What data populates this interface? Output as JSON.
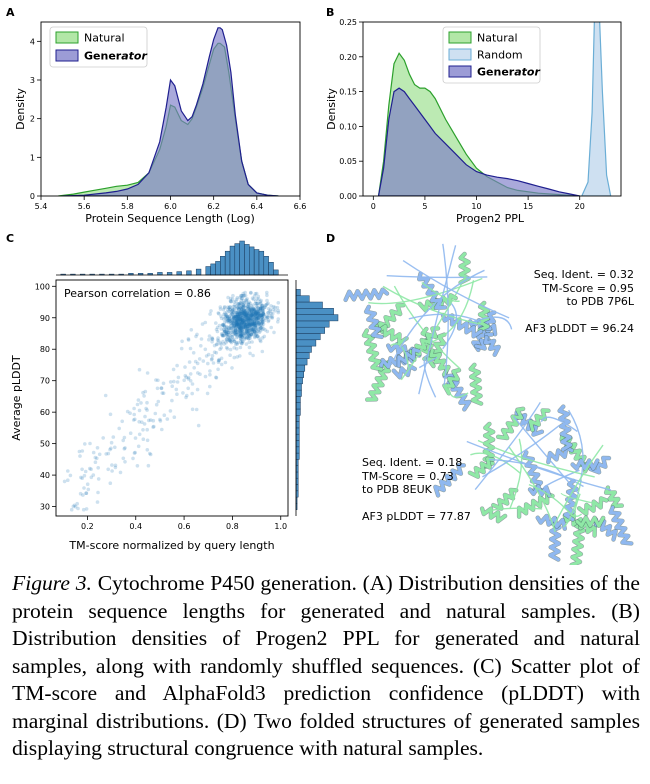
{
  "panels": {
    "A": {
      "letter": "A",
      "chart_data": {
        "type": "area",
        "xlabel": "Protein Sequence Length (Log)",
        "ylabel": "Density",
        "xlim": [
          5.4,
          6.6
        ],
        "ylim": [
          0,
          4.5
        ],
        "xticks": [
          "5.4",
          "5.6",
          "5.8",
          "6.0",
          "6.2",
          "6.4",
          "6.6"
        ],
        "yticks": [
          "0",
          "1",
          "2",
          "3",
          "4"
        ],
        "legend_position": "top-left",
        "legend": [
          {
            "label": "Natural",
            "bold": "",
            "italic": ""
          },
          {
            "label": "",
            "bold": "Gener",
            "italic": "ator"
          }
        ],
        "series": [
          {
            "key": "natural",
            "color": "#2ca02c",
            "fill": "#98df8a",
            "x": [
              5.48,
              5.55,
              5.6,
              5.65,
              5.7,
              5.75,
              5.8,
              5.85,
              5.9,
              5.95,
              5.98,
              6.0,
              6.02,
              6.05,
              6.08,
              6.1,
              6.12,
              6.15,
              6.18,
              6.2,
              6.22,
              6.23,
              6.25,
              6.27,
              6.3,
              6.33,
              6.36,
              6.4,
              6.45,
              6.5
            ],
            "y": [
              0,
              0.05,
              0.1,
              0.15,
              0.2,
              0.25,
              0.28,
              0.35,
              0.6,
              1.2,
              1.8,
              2.35,
              2.3,
              1.95,
              1.85,
              2.0,
              2.3,
              2.8,
              3.4,
              3.8,
              3.95,
              3.95,
              3.85,
              3.2,
              2.0,
              0.9,
              0.3,
              0.08,
              0.02,
              0
            ]
          },
          {
            "key": "generator",
            "color": "#1f1f8f",
            "fill": "#7b7bc8",
            "x": [
              5.5,
              5.6,
              5.7,
              5.75,
              5.8,
              5.85,
              5.9,
              5.95,
              5.98,
              6.0,
              6.02,
              6.05,
              6.08,
              6.1,
              6.12,
              6.15,
              6.18,
              6.2,
              6.22,
              6.23,
              6.24,
              6.26,
              6.28,
              6.3,
              6.33,
              6.36,
              6.4,
              6.45,
              6.5
            ],
            "y": [
              0,
              0.02,
              0.08,
              0.12,
              0.18,
              0.3,
              0.6,
              1.4,
              2.3,
              3.0,
              2.85,
              2.2,
              1.95,
              2.05,
              2.35,
              2.9,
              3.6,
              4.05,
              4.35,
              4.35,
              4.3,
              3.9,
              3.2,
              2.1,
              0.9,
              0.3,
              0.08,
              0.02,
              0
            ]
          }
        ]
      }
    },
    "B": {
      "letter": "B",
      "chart_data": {
        "type": "area",
        "xlabel": "Progen2 PPL",
        "ylabel": "Density",
        "xlim": [
          -1,
          24
        ],
        "ylim": [
          0,
          0.25
        ],
        "xticks": [
          "0",
          "5",
          "10",
          "15",
          "20"
        ],
        "xtick_values": [
          0,
          5,
          10,
          15,
          20
        ],
        "yticks": [
          "0.00",
          "0.05",
          "0.10",
          "0.15",
          "0.20",
          "0.25"
        ],
        "ytick_values": [
          0,
          0.05,
          0.1,
          0.15,
          0.2,
          0.25
        ],
        "legend_position": "top-center",
        "legend": [
          {
            "label": "Natural",
            "bold": "",
            "italic": ""
          },
          {
            "label": "Random",
            "bold": "",
            "italic": ""
          },
          {
            "label": "",
            "bold": "Gener",
            "italic": "ator"
          }
        ],
        "series": [
          {
            "key": "natural",
            "color": "#2ca02c",
            "fill": "#98df8a",
            "x": [
              0.5,
              1.0,
              1.5,
              2.0,
              2.5,
              3.0,
              3.5,
              4.0,
              4.5,
              5.0,
              5.5,
              6.0,
              7.0,
              8.0,
              9.0,
              10.0,
              11.0,
              12.0,
              13.0,
              14.0,
              16.0,
              18.0,
              20.0
            ],
            "y": [
              0,
              0.05,
              0.13,
              0.19,
              0.205,
              0.195,
              0.175,
              0.16,
              0.155,
              0.155,
              0.15,
              0.14,
              0.11,
              0.085,
              0.06,
              0.04,
              0.028,
              0.02,
              0.012,
              0.008,
              0.004,
              0.002,
              0
            ]
          },
          {
            "key": "random",
            "color": "#6baed6",
            "fill": "#c6dbef",
            "x": [
              20.2,
              20.8,
              21.2,
              21.5,
              21.8,
              22.2,
              22.6,
              23.0
            ],
            "y": [
              0,
              0.02,
              0.12,
              0.3,
              0.3,
              0.15,
              0.03,
              0
            ]
          },
          {
            "key": "generator",
            "color": "#1f1f8f",
            "fill": "#7b7bc8",
            "x": [
              0.5,
              1.0,
              1.5,
              2.0,
              2.5,
              3.0,
              3.5,
              4.0,
              4.5,
              5.0,
              5.5,
              6.0,
              7.0,
              8.0,
              9.0,
              10.0,
              11.0,
              12.0,
              13.0,
              14.0,
              15.0,
              16.0,
              17.0,
              18.0,
              19.0,
              20.0
            ],
            "y": [
              0,
              0.04,
              0.11,
              0.15,
              0.155,
              0.15,
              0.14,
              0.13,
              0.12,
              0.11,
              0.1,
              0.09,
              0.075,
              0.06,
              0.045,
              0.035,
              0.03,
              0.027,
              0.025,
              0.022,
              0.018,
              0.014,
              0.01,
              0.006,
              0.003,
              0
            ]
          }
        ]
      }
    },
    "C": {
      "letter": "C",
      "chart_data": {
        "type": "scatter",
        "xlabel": "TM-score normalized by query length",
        "ylabel": "Average pLDDT",
        "xlim": [
          0.07,
          1.03
        ],
        "ylim": [
          27,
          102
        ],
        "xticks": [
          "0.2",
          "0.4",
          "0.6",
          "0.8",
          "1.0"
        ],
        "xtick_values": [
          0.2,
          0.4,
          0.6,
          0.8,
          1.0
        ],
        "yticks": [
          "30",
          "40",
          "50",
          "60",
          "70",
          "80",
          "90",
          "100"
        ],
        "ytick_values": [
          30,
          40,
          50,
          60,
          70,
          80,
          90,
          100
        ],
        "annotation": "Pearson correlation = 0.86",
        "point_color": "#1f77b4",
        "x_histogram": {
          "bin_centers": [
            0.1,
            0.14,
            0.18,
            0.22,
            0.26,
            0.3,
            0.34,
            0.38,
            0.42,
            0.46,
            0.5,
            0.54,
            0.58,
            0.62,
            0.66,
            0.7,
            0.72,
            0.74,
            0.76,
            0.78,
            0.8,
            0.82,
            0.84,
            0.86,
            0.88,
            0.9,
            0.92,
            0.94,
            0.96,
            0.98
          ],
          "values": [
            1,
            1,
            1,
            1,
            1,
            1,
            1,
            2,
            2,
            2,
            3,
            3,
            4,
            5,
            7,
            10,
            13,
            16,
            22,
            28,
            34,
            37,
            40,
            36,
            33,
            30,
            28,
            22,
            15,
            6
          ]
        },
        "y_histogram": {
          "bin_centers": [
            30,
            32,
            34,
            36,
            38,
            40,
            42,
            44,
            46,
            48,
            50,
            52,
            54,
            56,
            58,
            60,
            62,
            64,
            66,
            68,
            70,
            72,
            74,
            76,
            78,
            80,
            82,
            84,
            86,
            88,
            90,
            92,
            94,
            96,
            98
          ],
          "values": [
            1,
            1,
            2,
            2,
            2,
            2,
            2,
            2,
            3,
            3,
            3,
            3,
            3,
            3,
            3,
            4,
            4,
            4,
            5,
            5,
            6,
            7,
            8,
            10,
            12,
            14,
            18,
            22,
            26,
            30,
            38,
            34,
            24,
            12,
            4
          ]
        }
      }
    },
    "D": {
      "letter": "D",
      "structure1": {
        "lines": [
          "Seq. Ident. = 0.32",
          "TM-Score = 0.95",
          "to PDB 7P6L",
          "",
          "AF3 pLDDT = 96.24"
        ]
      },
      "structure2": {
        "lines": [
          "Seq. Ident. = 0.18",
          "TM-Score = 0.73",
          "to PDB 8EUK",
          "",
          "AF3 pLDDT = 77.87"
        ]
      },
      "colors": {
        "natural": "#8fe8a6",
        "generated": "#8fb8f0"
      }
    }
  },
  "caption": {
    "label": "Figure 3.",
    "text": " Cytochrome P450 generation. (A) Distribution densities of the protein sequence lengths for generated and natural samples. (B) Distribution densities of Progen2 PPL for generated and natural samples, along with randomly shuffled sequences. (C) Scatter plot of TM-score and AlphaFold3 prediction confidence (pLDDT) with marginal distributions. (D) Two folded structures of generated samples displaying structural congruence with natural samples."
  }
}
